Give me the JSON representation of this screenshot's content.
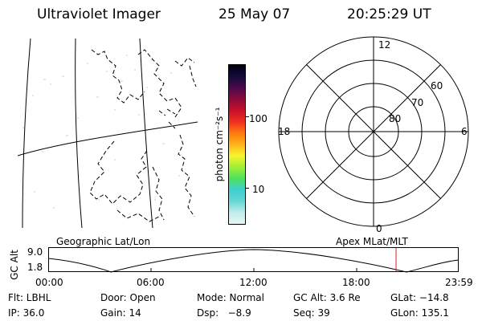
{
  "header": {
    "title": "Ultraviolet Imager",
    "date": "25 May 07",
    "time": "20:25:29 UT"
  },
  "colorbar": {
    "unit_label": "photon cm⁻²s⁻¹",
    "ticks": [
      "100",
      "10"
    ],
    "colors": [
      "#e8f6f4",
      "#bfeee9",
      "#66d6d6",
      "#3ecfcf",
      "#4fe05e",
      "#9ff036",
      "#f6f52c",
      "#ffb21a",
      "#ff7a10",
      "#ef2f1f",
      "#c8102a",
      "#8c0a3a",
      "#4a0a4c",
      "#140a3c",
      "#000010"
    ]
  },
  "polar": {
    "clock_labels": {
      "top": "12",
      "left": "18",
      "right": "6",
      "bottom": "0"
    },
    "lat_labels": [
      "60",
      "70",
      "80"
    ]
  },
  "panel": {
    "ylabel": "GC Alt",
    "yticks": [
      "9.0",
      "1.8"
    ],
    "left_title": "Geographic Lat/Lon",
    "right_title": "Apex MLat/MLT",
    "xticks": [
      "00:00",
      "06:00",
      "12:00",
      "18:00",
      "23:59"
    ],
    "marker_color": "#cc2222"
  },
  "info": {
    "flt": "Flt: LBHL",
    "door": "Door: Open",
    "mode": "Mode: Normal",
    "gcalt": "GC Alt: 3.6 Re",
    "glat": "GLat: −14.8",
    "ip": "IP: 36.0",
    "gain": "Gain: 14",
    "dsp": "Dsp:   −8.9",
    "seq": "Seq: 39",
    "glon": "GLon: 135.1"
  }
}
